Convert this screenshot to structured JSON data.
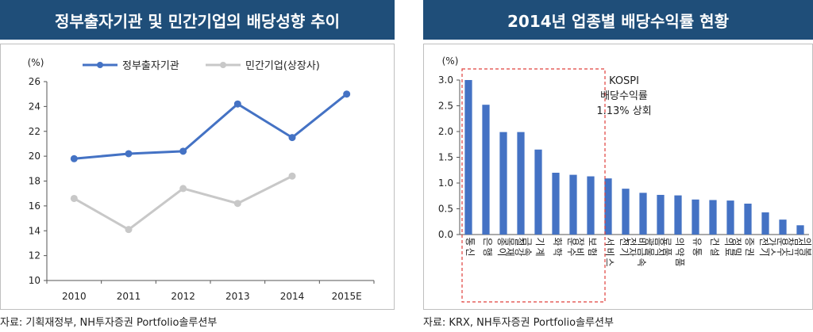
{
  "left_panel": {
    "title": "정부출자기관 및 민간기업의 배당성향 추이",
    "source": "자료: 기획재정부, NH투자증권 Portfolio솔루션부"
  },
  "right_panel": {
    "title": "2014년 업종별 배당수익률 현황",
    "source": "자료: KRX, NH투자증권 Portfolio솔루션부"
  },
  "chart_data": [
    {
      "type": "line",
      "unit_label": "(%)",
      "x": [
        "2010",
        "2011",
        "2012",
        "2013",
        "2014",
        "2015E"
      ],
      "series": [
        {
          "name": "정부출자기관",
          "color": "#4472c4",
          "values": [
            19.8,
            20.2,
            20.4,
            24.2,
            21.5,
            25.0
          ]
        },
        {
          "name": "민간기업(상장사)",
          "color": "#c8c8c8",
          "values": [
            16.6,
            14.1,
            17.4,
            16.2,
            18.4,
            null
          ]
        }
      ],
      "ylim": [
        10,
        26
      ],
      "yticks": [
        "10",
        "12",
        "14",
        "16",
        "18",
        "20",
        "22",
        "24",
        "26"
      ],
      "legend": "top",
      "grid": false
    },
    {
      "type": "bar",
      "unit_label": "(%)",
      "categories": [
        "통신",
        "은행",
        "종이목재",
        "철강금속",
        "기계",
        "화학",
        "운수장비",
        "보험",
        "서비스",
        "전기전자",
        "비금속광물",
        "음식료품",
        "의약품",
        "유통",
        "건설",
        "의료정밀",
        "증권",
        "전기가스",
        "운수창고",
        "섬유의복"
      ],
      "values": [
        3.0,
        2.52,
        1.99,
        1.99,
        1.65,
        1.2,
        1.16,
        1.13,
        1.09,
        0.89,
        0.81,
        0.77,
        0.76,
        0.68,
        0.67,
        0.66,
        0.6,
        0.43,
        0.29,
        0.18
      ],
      "color": "#4472c4",
      "ylim": [
        0,
        3.0
      ],
      "yticks": [
        "0.0",
        "0.5",
        "1.0",
        "1.5",
        "2.0",
        "2.5",
        "3.0"
      ],
      "annotation": [
        "KOSPI",
        "배당수익률",
        "1.13% 상회"
      ],
      "highlight_first_n": 8,
      "grid": false
    }
  ]
}
